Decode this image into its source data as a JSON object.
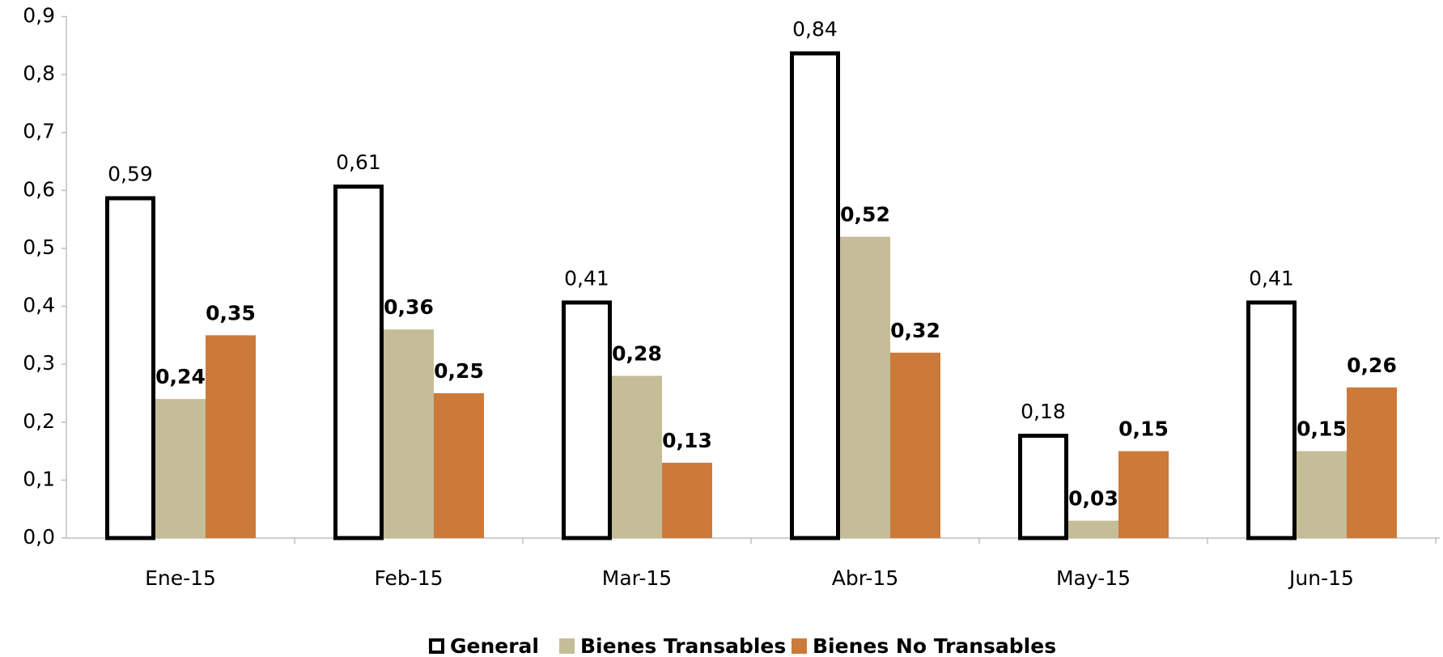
{
  "chart_data": {
    "type": "bar",
    "categories": [
      "Ene-15",
      "Feb-15",
      "Mar-15",
      "Abr-15",
      "May-15",
      "Jun-15"
    ],
    "series": [
      {
        "name": "General",
        "color": "#ffffff",
        "stroke": "#000000",
        "label_color": "#000000",
        "values": [
          0.59,
          0.61,
          0.41,
          0.84,
          0.18,
          0.41
        ],
        "value_labels": [
          "0,59",
          "0,61",
          "0,41",
          "0,84",
          "0,18",
          "0,41"
        ]
      },
      {
        "name": "Bienes Transables",
        "color": "#c4bd97",
        "label_color": "#7f7f00",
        "values": [
          0.24,
          0.36,
          0.28,
          0.52,
          0.03,
          0.15
        ],
        "value_labels": [
          "0,24",
          "0,36",
          "0,28",
          "0,52",
          "0,03",
          "0,15"
        ]
      },
      {
        "name": "Bienes No Transables",
        "color": "#cc7a3a",
        "label_color": "#e0925a",
        "values": [
          0.35,
          0.25,
          0.13,
          0.32,
          0.15,
          0.26
        ],
        "value_labels": [
          "0,35",
          "0,25",
          "0,13",
          "0,32",
          "0,15",
          "0,26"
        ]
      }
    ],
    "ylim": [
      0,
      0.9
    ],
    "yticks": [
      {
        "value": 0,
        "label": "0,0"
      },
      {
        "value": 0.1,
        "label": "0,1"
      },
      {
        "value": 0.2,
        "label": "0,2"
      },
      {
        "value": 0.3,
        "label": "0,3"
      },
      {
        "value": 0.4,
        "label": "0,4"
      },
      {
        "value": 0.5,
        "label": "0,5"
      },
      {
        "value": 0.6,
        "label": "0,6"
      },
      {
        "value": 0.7,
        "label": "0,7"
      },
      {
        "value": 0.8,
        "label": "0,8"
      },
      {
        "value": 0.9,
        "label": "0,9"
      }
    ],
    "grid": false,
    "legend": "bottom"
  }
}
